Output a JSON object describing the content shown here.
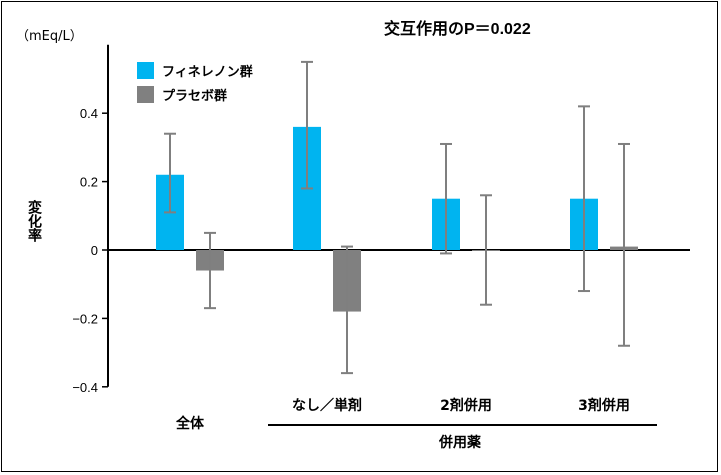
{
  "chart_data": {
    "type": "bar",
    "title": "交互作用のP＝0.022",
    "y_unit": "（mEq/L）",
    "ylabel": "変化率",
    "ylim": [
      -0.4,
      0.6
    ],
    "yticks": [
      {
        "value": 0.4,
        "label": "0.4"
      },
      {
        "value": 0.2,
        "label": "0.2"
      },
      {
        "value": 0,
        "label": "0"
      },
      {
        "value": -0.2,
        "label": "−0.2"
      },
      {
        "value": -0.4,
        "label": "−0.4"
      }
    ],
    "categories": [
      "全体",
      "なし／単剤",
      "2剤併用",
      "3剤併用"
    ],
    "group_label": "併用薬",
    "series": [
      {
        "name": "フィネレノン群",
        "color": "#00B4F0",
        "values": [
          0.22,
          0.36,
          0.15,
          0.15
        ],
        "err_low": [
          0.11,
          0.18,
          -0.01,
          -0.12
        ],
        "err_high": [
          0.34,
          0.55,
          0.31,
          0.42
        ]
      },
      {
        "name": "プラセボ群",
        "color": "#808080",
        "values": [
          -0.06,
          -0.18,
          0.0,
          0.01
        ],
        "err_low": [
          -0.17,
          -0.36,
          -0.16,
          -0.28
        ],
        "err_high": [
          0.05,
          0.01,
          0.16,
          0.31
        ]
      }
    ]
  }
}
